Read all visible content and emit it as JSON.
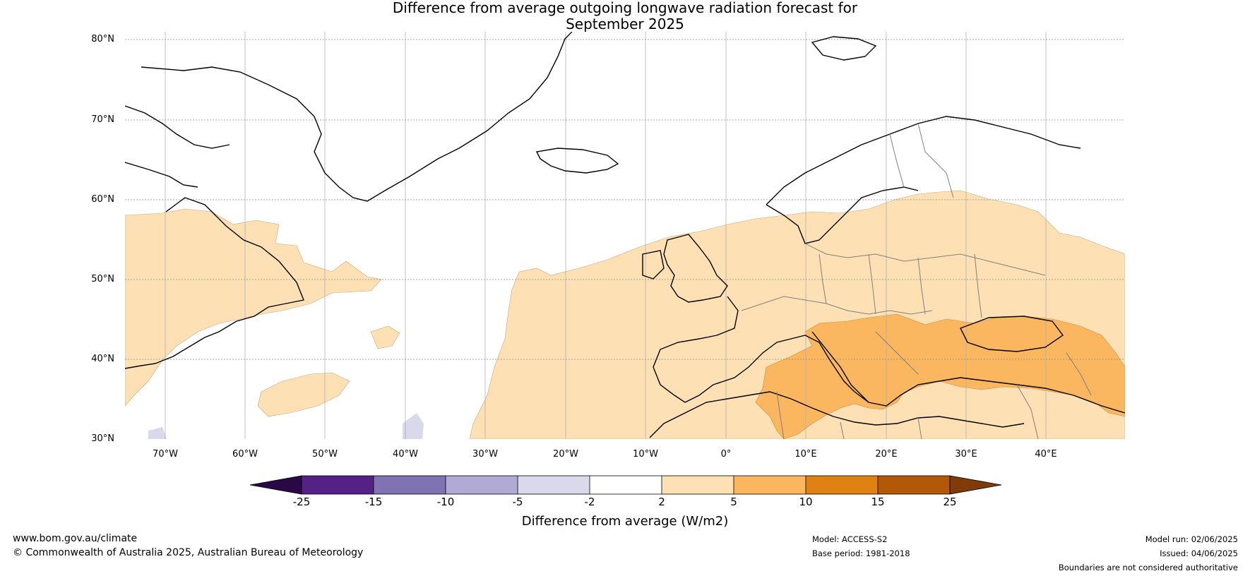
{
  "title": {
    "line1": "Difference from average outgoing longwave radiation forecast for",
    "line2": "September 2025"
  },
  "map": {
    "lat_ticks": [
      "80°N",
      "70°N",
      "60°N",
      "50°N",
      "40°N",
      "30°N"
    ],
    "lon_ticks": [
      "70°W",
      "60°W",
      "50°W",
      "40°W",
      "30°W",
      "20°W",
      "10°W",
      "0°",
      "10°E",
      "20°E",
      "30°E",
      "40°E"
    ],
    "extent": {
      "lon": [
        -75,
        50
      ],
      "lat": [
        30,
        81
      ]
    },
    "colors": {
      "land_coast": "#000000",
      "borders": "#808080",
      "pos_2_5": "#fde0b3",
      "pos_5_10": "#fbb660"
    }
  },
  "colorbar": {
    "ticks": [
      "-25",
      "-15",
      "-10",
      "-5",
      "-2",
      "2",
      "5",
      "10",
      "15",
      "25"
    ],
    "colors": [
      "#2a0846",
      "#552187",
      "#7f73b1",
      "#b0aad4",
      "#d9d9eb",
      "#ffffff",
      "#fde0b3",
      "#fbb660",
      "#e08114",
      "#b35807",
      "#7f3b08"
    ],
    "label": "Difference from average (W/m2)"
  },
  "footer": {
    "website": "www.bom.gov.au/climate",
    "copyright": "© Commonwealth of Australia 2025, Australian Bureau of Meteorology",
    "model": "Model: ACCESS-S2",
    "base_period": "Base period: 1981-2018",
    "model_run": "Model run: 02/06/2025",
    "issued": "Issued: 04/06/2025",
    "boundaries": "Boundaries are not considered authoritative"
  }
}
